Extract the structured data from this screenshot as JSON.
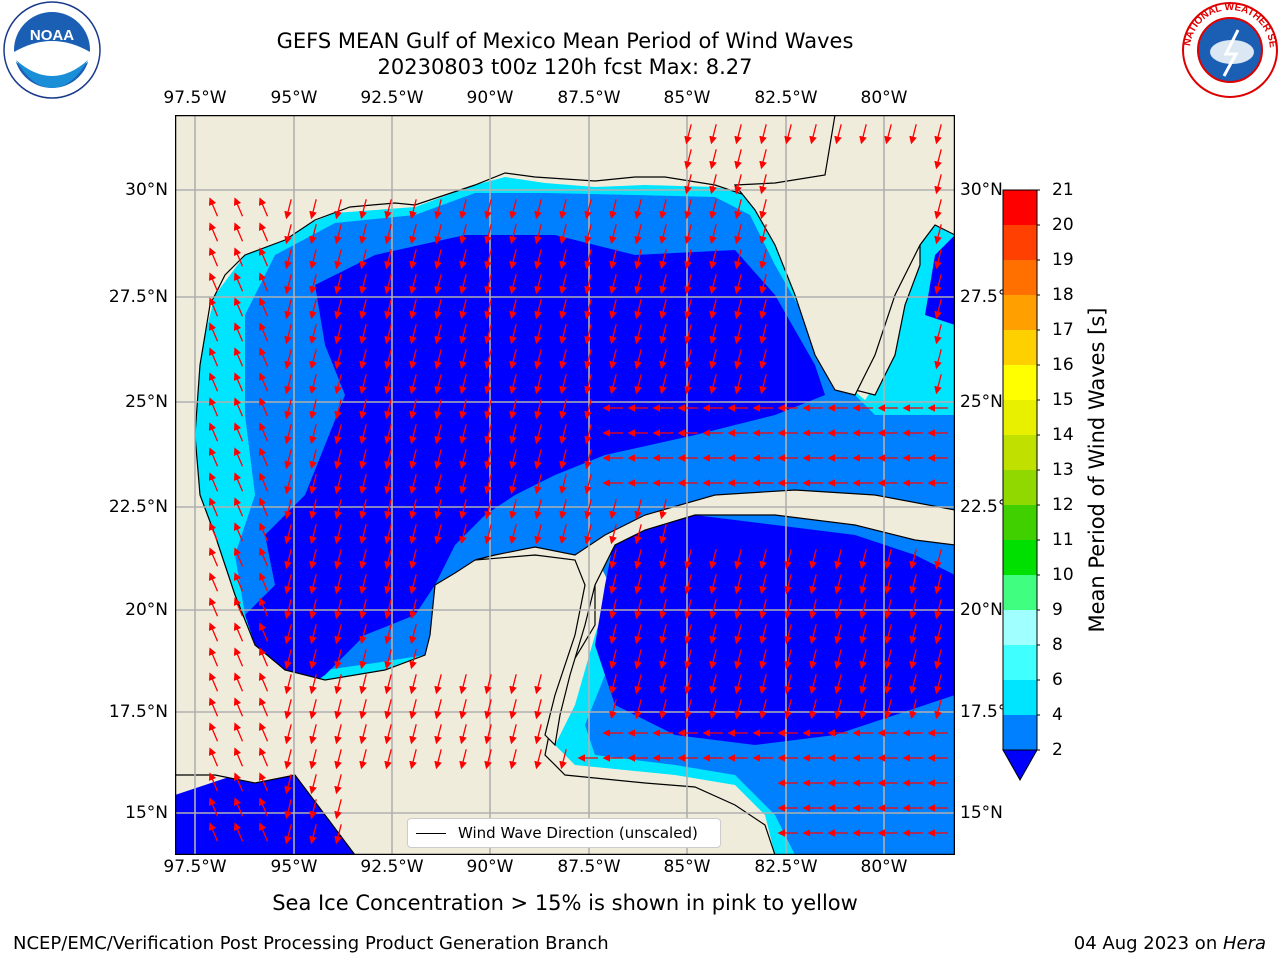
{
  "title": {
    "line1": "GEFS MEAN Gulf of Mexico Mean Period of Wind Waves",
    "line2": "20230803 t00z 120h fcst   Max: 8.27"
  },
  "map": {
    "lon_labels": [
      "97.5°W",
      "95°W",
      "92.5°W",
      "90°W",
      "87.5°W",
      "85°W",
      "82.5°W",
      "80°W"
    ],
    "lat_labels": [
      "30°N",
      "27.5°N",
      "25°N",
      "22.5°N",
      "20°N",
      "17.5°N",
      "15°N"
    ],
    "land_color": "#efecdc",
    "grid_color": "#b0b0b0",
    "arrow_color": "#ff0000",
    "coast_color": "#000000"
  },
  "colorbar": {
    "label": "Mean Period of Wind Waves [s]",
    "ticks": [
      "2",
      "4",
      "6",
      "8",
      "9",
      "10",
      "11",
      "12",
      "13",
      "14",
      "15",
      "16",
      "17",
      "18",
      "19",
      "20",
      "21"
    ],
    "colors": [
      "#0000ff",
      "#0080ff",
      "#00e5ff",
      "#40ffff",
      "#a0ffff",
      "#40ff80",
      "#00e000",
      "#40d000",
      "#90d800",
      "#c0e000",
      "#e8f000",
      "#ffff00",
      "#ffd000",
      "#ffa000",
      "#ff7000",
      "#ff4000",
      "#ff0000"
    ]
  },
  "legend": {
    "label": "Wind Wave Direction (unscaled)"
  },
  "sea_ice_note": "Sea Ice Concentration > 15% is shown in pink to yellow",
  "footer": {
    "left": "NCEP/EMC/Verification Post Processing Product Generation Branch",
    "right_date": "04 Aug 2023 on ",
    "right_host": "Hera"
  },
  "logos": {
    "noaa_text": "NOAA",
    "nws_text": "NATIONAL WEATHER SERVICE"
  }
}
